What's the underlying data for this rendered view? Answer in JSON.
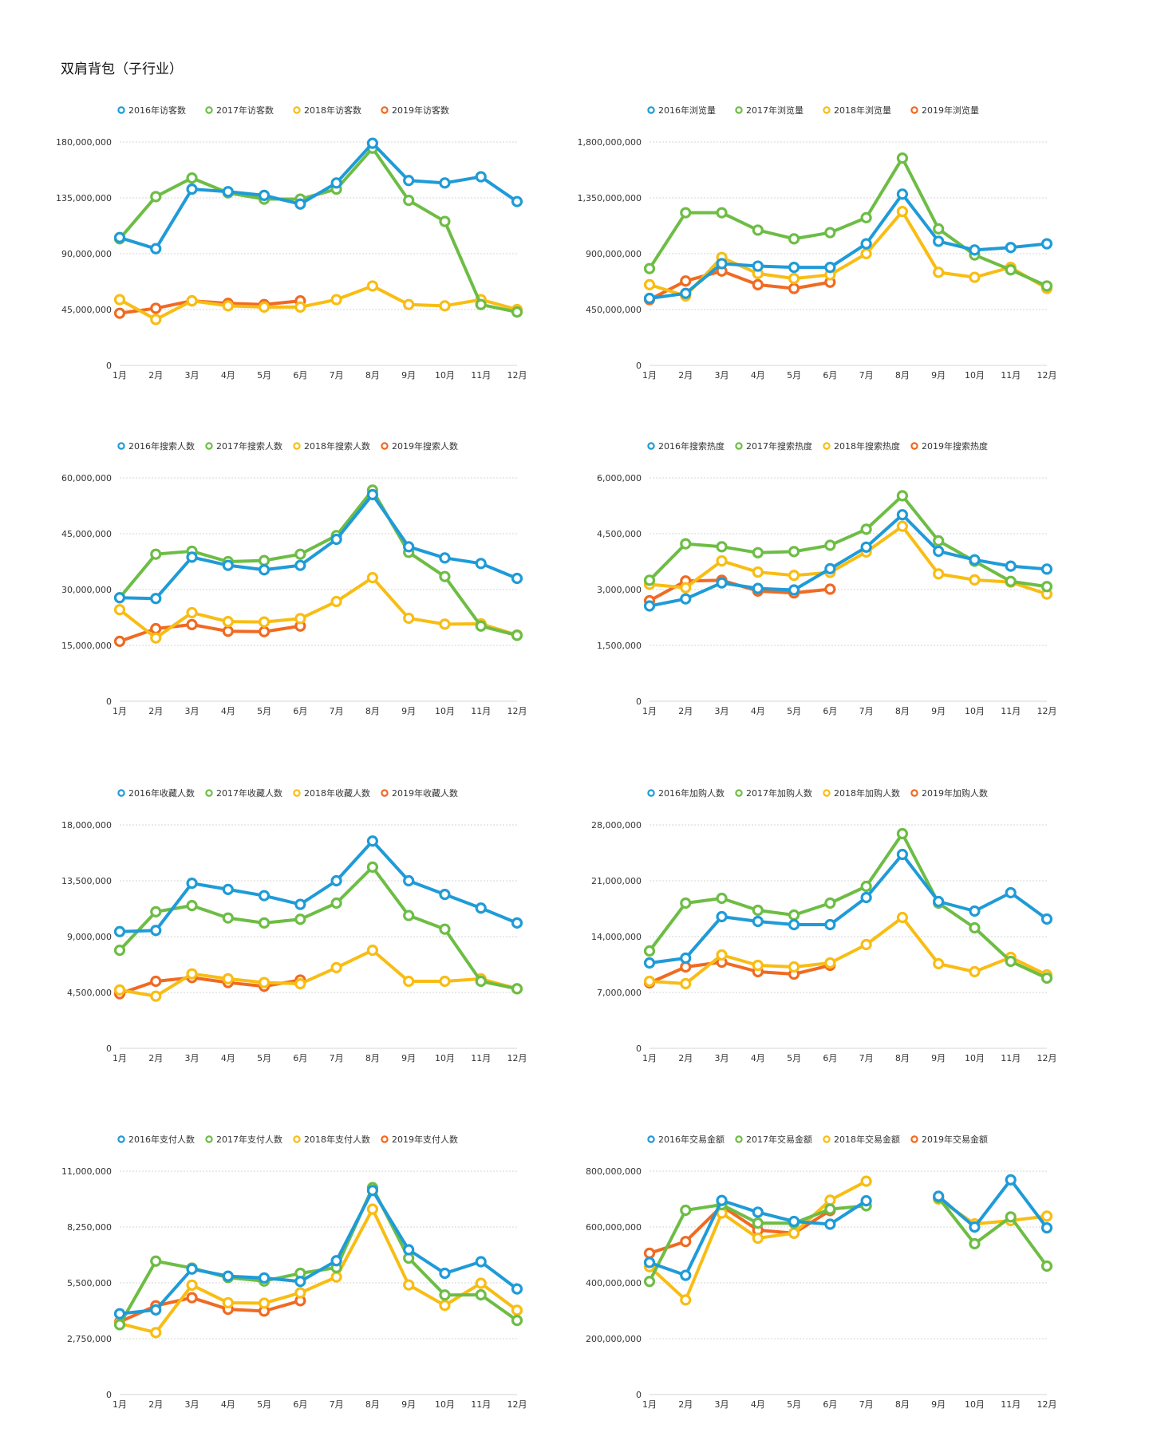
{
  "page_title": "双肩背包（子行业）",
  "colors": {
    "series_2016": "#1f9bd7",
    "series_2017": "#6dbd45",
    "series_2018": "#f8bd14",
    "series_2019": "#f06a22",
    "grid": "#d6d6d6",
    "axis_text": "#333333"
  },
  "chart_data": [
    {
      "type": "line",
      "title": "访客数",
      "categories": [
        "1月",
        "2月",
        "3月",
        "4月",
        "5月",
        "6月",
        "7月",
        "8月",
        "9月",
        "10月",
        "11月",
        "12月"
      ],
      "ylim": [
        0,
        180000000
      ],
      "yticks": [
        "0",
        "45,000,000",
        "90,000,000",
        "135,000,000",
        "180,000,000"
      ],
      "series": [
        {
          "name": "2016年访客数",
          "values": [
            103000000,
            94000000,
            142000000,
            140000000,
            137000000,
            130000000,
            147000000,
            179000000,
            149000000,
            147000000,
            152000000,
            132000000
          ]
        },
        {
          "name": "2017年访客数",
          "values": [
            102000000,
            136000000,
            151000000,
            139000000,
            134000000,
            134000000,
            142000000,
            175000000,
            133000000,
            116000000,
            49000000,
            43000000
          ]
        },
        {
          "name": "2018年访客数",
          "values": [
            53000000,
            37000000,
            52000000,
            48000000,
            47000000,
            47000000,
            53000000,
            64000000,
            49000000,
            48000000,
            53000000,
            45000000
          ]
        },
        {
          "name": "2019年访客数",
          "values": [
            42000000,
            46000000,
            52000000,
            50000000,
            49000000,
            52000000,
            null,
            null,
            null,
            null,
            null,
            null
          ]
        }
      ]
    },
    {
      "type": "line",
      "title": "浏览量",
      "categories": [
        "1月",
        "2月",
        "3月",
        "4月",
        "5月",
        "6月",
        "7月",
        "8月",
        "9月",
        "10月",
        "11月",
        "12月"
      ],
      "ylim": [
        0,
        1800000000
      ],
      "yticks": [
        "0",
        "450,000,000",
        "900,000,000",
        "1,350,000,000",
        "1,800,000,000"
      ],
      "series": [
        {
          "name": "2016年浏览量",
          "values": [
            540000000,
            580000000,
            820000000,
            800000000,
            790000000,
            790000000,
            980000000,
            1380000000,
            1000000000,
            930000000,
            950000000,
            980000000
          ]
        },
        {
          "name": "2017年浏览量",
          "values": [
            780000000,
            1230000000,
            1230000000,
            1090000000,
            1020000000,
            1070000000,
            1190000000,
            1670000000,
            1100000000,
            890000000,
            770000000,
            640000000
          ]
        },
        {
          "name": "2018年浏览量",
          "values": [
            650000000,
            560000000,
            870000000,
            740000000,
            700000000,
            730000000,
            900000000,
            1240000000,
            750000000,
            710000000,
            790000000,
            620000000
          ]
        },
        {
          "name": "2019年浏览量",
          "values": [
            530000000,
            680000000,
            760000000,
            650000000,
            620000000,
            670000000,
            null,
            null,
            null,
            null,
            null,
            null
          ]
        }
      ]
    },
    {
      "type": "line",
      "title": "搜索人数",
      "categories": [
        "1月",
        "2月",
        "3月",
        "4月",
        "5月",
        "6月",
        "7月",
        "8月",
        "9月",
        "10月",
        "11月",
        "12月"
      ],
      "ylim": [
        0,
        60000000
      ],
      "yticks": [
        "0",
        "15,000,000",
        "30,000,000",
        "45,000,000",
        "60,000,000"
      ],
      "series": [
        {
          "name": "2016年搜索人数",
          "values": [
            27800000,
            27600000,
            38700000,
            36500000,
            35300000,
            36500000,
            43500000,
            55500000,
            41500000,
            38500000,
            37000000,
            33000000
          ]
        },
        {
          "name": "2017年搜索人数",
          "values": [
            27800000,
            39500000,
            40300000,
            37500000,
            37800000,
            39500000,
            44500000,
            56700000,
            40000000,
            33500000,
            20200000,
            17700000
          ]
        },
        {
          "name": "2018年搜索人数",
          "values": [
            24600000,
            17000000,
            23800000,
            21400000,
            21300000,
            22200000,
            26800000,
            33200000,
            22300000,
            20700000,
            20800000,
            17800000
          ]
        },
        {
          "name": "2019年搜索人数",
          "values": [
            16100000,
            19500000,
            20600000,
            18800000,
            18700000,
            20200000,
            null,
            null,
            null,
            null,
            null,
            null
          ]
        }
      ]
    },
    {
      "type": "line",
      "title": "搜索热度",
      "categories": [
        "1月",
        "2月",
        "3月",
        "4月",
        "5月",
        "6月",
        "7月",
        "8月",
        "9月",
        "10月",
        "11月",
        "12月"
      ],
      "ylim": [
        0,
        6000000
      ],
      "yticks": [
        "0",
        "1,500,000",
        "3,000,000",
        "4,500,000",
        "6,000,000"
      ],
      "series": [
        {
          "name": "2016年搜索热度",
          "values": [
            2560000,
            2750000,
            3180000,
            3030000,
            2990000,
            3560000,
            4140000,
            5010000,
            4030000,
            3800000,
            3630000,
            3550000
          ]
        },
        {
          "name": "2017年搜索热度",
          "values": [
            3250000,
            4230000,
            4150000,
            3990000,
            4020000,
            4190000,
            4620000,
            5520000,
            4310000,
            3760000,
            3220000,
            3080000
          ]
        },
        {
          "name": "2018年搜索热度",
          "values": [
            3140000,
            3050000,
            3770000,
            3470000,
            3380000,
            3460000,
            4010000,
            4700000,
            3420000,
            3260000,
            3200000,
            2880000
          ]
        },
        {
          "name": "2019年搜索热度",
          "values": [
            2700000,
            3230000,
            3250000,
            2960000,
            2910000,
            3010000,
            null,
            null,
            null,
            null,
            null,
            null
          ]
        }
      ]
    },
    {
      "type": "line",
      "title": "收藏人数",
      "categories": [
        "1月",
        "2月",
        "3月",
        "4月",
        "5月",
        "6月",
        "7月",
        "8月",
        "9月",
        "10月",
        "11月",
        "12月"
      ],
      "ylim": [
        0,
        18000000
      ],
      "yticks": [
        "0",
        "4,500,000",
        "9,000,000",
        "13,500,000",
        "18,000,000"
      ],
      "series": [
        {
          "name": "2016年收藏人数",
          "values": [
            9400000,
            9500000,
            13300000,
            12800000,
            12300000,
            11600000,
            13500000,
            16700000,
            13500000,
            12400000,
            11300000,
            10100000
          ]
        },
        {
          "name": "2017年收藏人数",
          "values": [
            7900000,
            11000000,
            11500000,
            10500000,
            10100000,
            10400000,
            11700000,
            14600000,
            10700000,
            9600000,
            5400000,
            4800000
          ]
        },
        {
          "name": "2018年收藏人数",
          "values": [
            4700000,
            4200000,
            6000000,
            5600000,
            5300000,
            5200000,
            6500000,
            7900000,
            5400000,
            5400000,
            5600000,
            4800000
          ]
        },
        {
          "name": "2019年收藏人数",
          "values": [
            4400000,
            5400000,
            5700000,
            5300000,
            5000000,
            5500000,
            null,
            null,
            null,
            null,
            null,
            null
          ]
        }
      ]
    },
    {
      "type": "line",
      "title": "加购人数",
      "categories": [
        "1月",
        "2月",
        "3月",
        "4月",
        "5月",
        "6月",
        "7月",
        "8月",
        "9月",
        "10月",
        "11月",
        "12月"
      ],
      "ylim": [
        0,
        28000000
      ],
      "yticks": [
        "0",
        "7,000,000",
        "14,000,000",
        "21,000,000",
        "28,000,000"
      ],
      "series": [
        {
          "name": "2016年加购人数",
          "values": [
            10700000,
            11300000,
            16500000,
            15900000,
            15500000,
            15500000,
            18900000,
            24300000,
            18400000,
            17200000,
            19500000,
            16200000
          ]
        },
        {
          "name": "2017年加购人数",
          "values": [
            12200000,
            18200000,
            18800000,
            17300000,
            16700000,
            18200000,
            20300000,
            26900000,
            18200000,
            15100000,
            10900000,
            8800000
          ]
        },
        {
          "name": "2018年加购人数",
          "values": [
            8400000,
            8100000,
            11700000,
            10400000,
            10200000,
            10700000,
            13000000,
            16400000,
            10600000,
            9600000,
            11400000,
            9200000
          ]
        },
        {
          "name": "2019年加购人数",
          "values": [
            8200000,
            10200000,
            10800000,
            9600000,
            9300000,
            10400000,
            null,
            null,
            null,
            null,
            null,
            null
          ]
        }
      ]
    },
    {
      "type": "line",
      "title": "支付人数",
      "categories": [
        "1月",
        "2月",
        "3月",
        "4月",
        "5月",
        "6月",
        "7月",
        "8月",
        "9月",
        "10月",
        "11月",
        "12月"
      ],
      "ylim": [
        0,
        11000000
      ],
      "yticks": [
        "0",
        "2,750,000",
        "5,500,000",
        "8,250,000",
        "11,000,000"
      ],
      "series": [
        {
          "name": "2016年支付人数",
          "values": [
            3980000,
            4170000,
            6180000,
            5830000,
            5740000,
            5570000,
            6590000,
            10050000,
            7130000,
            5970000,
            6540000,
            5200000
          ]
        },
        {
          "name": "2017年支付人数",
          "values": [
            3440000,
            6570000,
            6230000,
            5760000,
            5590000,
            5970000,
            6250000,
            10190000,
            6720000,
            4900000,
            4910000,
            3650000
          ]
        },
        {
          "name": "2018年支付人数",
          "values": [
            3500000,
            3050000,
            5390000,
            4520000,
            4500000,
            5010000,
            5790000,
            9130000,
            5400000,
            4390000,
            5480000,
            4150000
          ]
        },
        {
          "name": "2019年支付人数",
          "values": [
            3580000,
            4370000,
            4770000,
            4200000,
            4110000,
            4620000,
            null,
            null,
            null,
            null,
            null,
            null
          ]
        }
      ]
    },
    {
      "type": "line",
      "title": "交易金额",
      "categories": [
        "1月",
        "2月",
        "3月",
        "4月",
        "5月",
        "6月",
        "7月",
        "8月",
        "9月",
        "10月",
        "11月",
        "12月"
      ],
      "ylim": [
        0,
        800000000
      ],
      "yticks": [
        "0",
        "200,000,000",
        "400,000,000",
        "600,000,000",
        "800,000,000"
      ],
      "series": [
        {
          "name": "2016年交易金额",
          "values": [
            473000000,
            427000000,
            695000000,
            653000000,
            620000000,
            610000000,
            694000000,
            null,
            710000000,
            600000000,
            769000000,
            597000000
          ]
        },
        {
          "name": "2017年交易金额",
          "values": [
            405000000,
            660000000,
            680000000,
            614000000,
            614000000,
            664000000,
            676000000,
            null,
            705000000,
            540000000,
            636000000,
            460000000
          ]
        },
        {
          "name": "2018年交易金额",
          "values": [
            458000000,
            339000000,
            650000000,
            560000000,
            578000000,
            696000000,
            764000000,
            null,
            700000000,
            611000000,
            623000000,
            639000000
          ]
        },
        {
          "name": "2019年交易金额",
          "values": [
            506000000,
            548000000,
            675000000,
            589000000,
            578000000,
            659000000,
            null,
            null,
            null,
            null,
            null,
            null
          ]
        }
      ]
    }
  ]
}
